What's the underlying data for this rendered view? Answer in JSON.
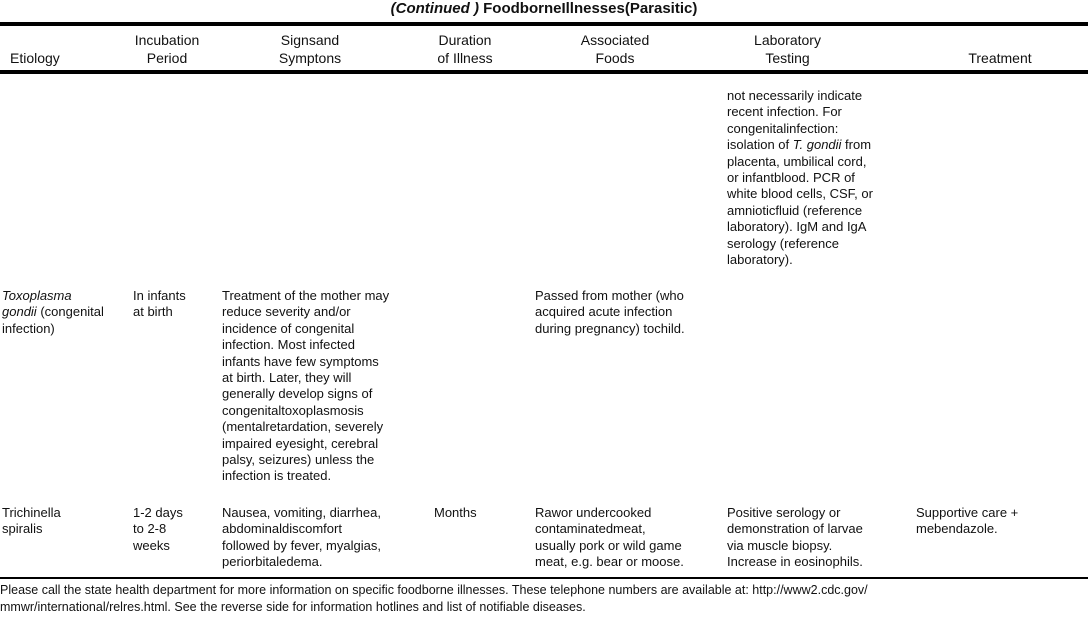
{
  "title": {
    "continued": "(Continued )",
    "main": "FoodborneIllnesses(Parasitic)"
  },
  "headers": [
    "Etiology",
    "Incubation\nPeriod",
    "Signsand\nSymptons",
    "Duration\nof Illness",
    "Associated\nFoods",
    "Laboratory\nTesting",
    "Treatment"
  ],
  "rows": [
    {
      "etiology": "",
      "etiology_rest": "",
      "incubation": "",
      "signs": "",
      "duration": "",
      "foods": "",
      "lab_pre": "not necessarily indicate\nrecent infection. For\ncongenitalinfection:\nisolation of ",
      "lab_italic": "T. gondii",
      "lab_post": " from\nplacenta, umbilical cord,\nor infantblood. PCR of\nwhite blood cells, CSF, or\namnioticfluid (reference\nlaboratory). IgM and IgA\nserology (reference\nlaboratory).",
      "treatment": ""
    },
    {
      "etiology": "Toxoplasma\ngondii",
      "etiology_rest": " (congenital\ninfection)",
      "incubation": "In infants\nat birth",
      "signs": "Treatment of the mother may\nreduce severity and/or\nincidence of congenital\ninfection. Most infected\ninfants have few symptoms\nat birth. Later, they will\ngenerally develop signs of\ncongenitaltoxoplasmosis\n(mentalretardation, severely\nimpaired eyesight, cerebral\npalsy, seizures) unless the\ninfection is treated.",
      "duration": "",
      "foods": "Passed from mother (who\nacquired acute infection\nduring pregnancy) tochild.",
      "lab": "",
      "treatment": ""
    },
    {
      "etiology": "Trichinella\nspiralis",
      "incubation": "1-2 days\nto 2-8\nweeks",
      "signs": "Nausea, vomiting, diarrhea,\nabdominaldiscomfort\nfollowed by fever, myalgias,\nperiorbitaledema.",
      "duration": "Months",
      "foods": "Rawor undercooked\ncontaminatedmeat,\nusually pork or wild game\nmeat, e.g. bear or moose.",
      "lab": "Positive serology or\ndemonstration of larvae\nvia muscle biopsy.\nIncrease in eosinophils.",
      "treatment": "Supportive care +\nmebendazole."
    }
  ],
  "footer": "Please call the state health department for more information on specific foodborne illnesses. These telephone numbers are available at: http://www2.cdc.gov/\nmmwr/international/relres.html. See the reverse side for information hotlines and list of notifiable diseases."
}
